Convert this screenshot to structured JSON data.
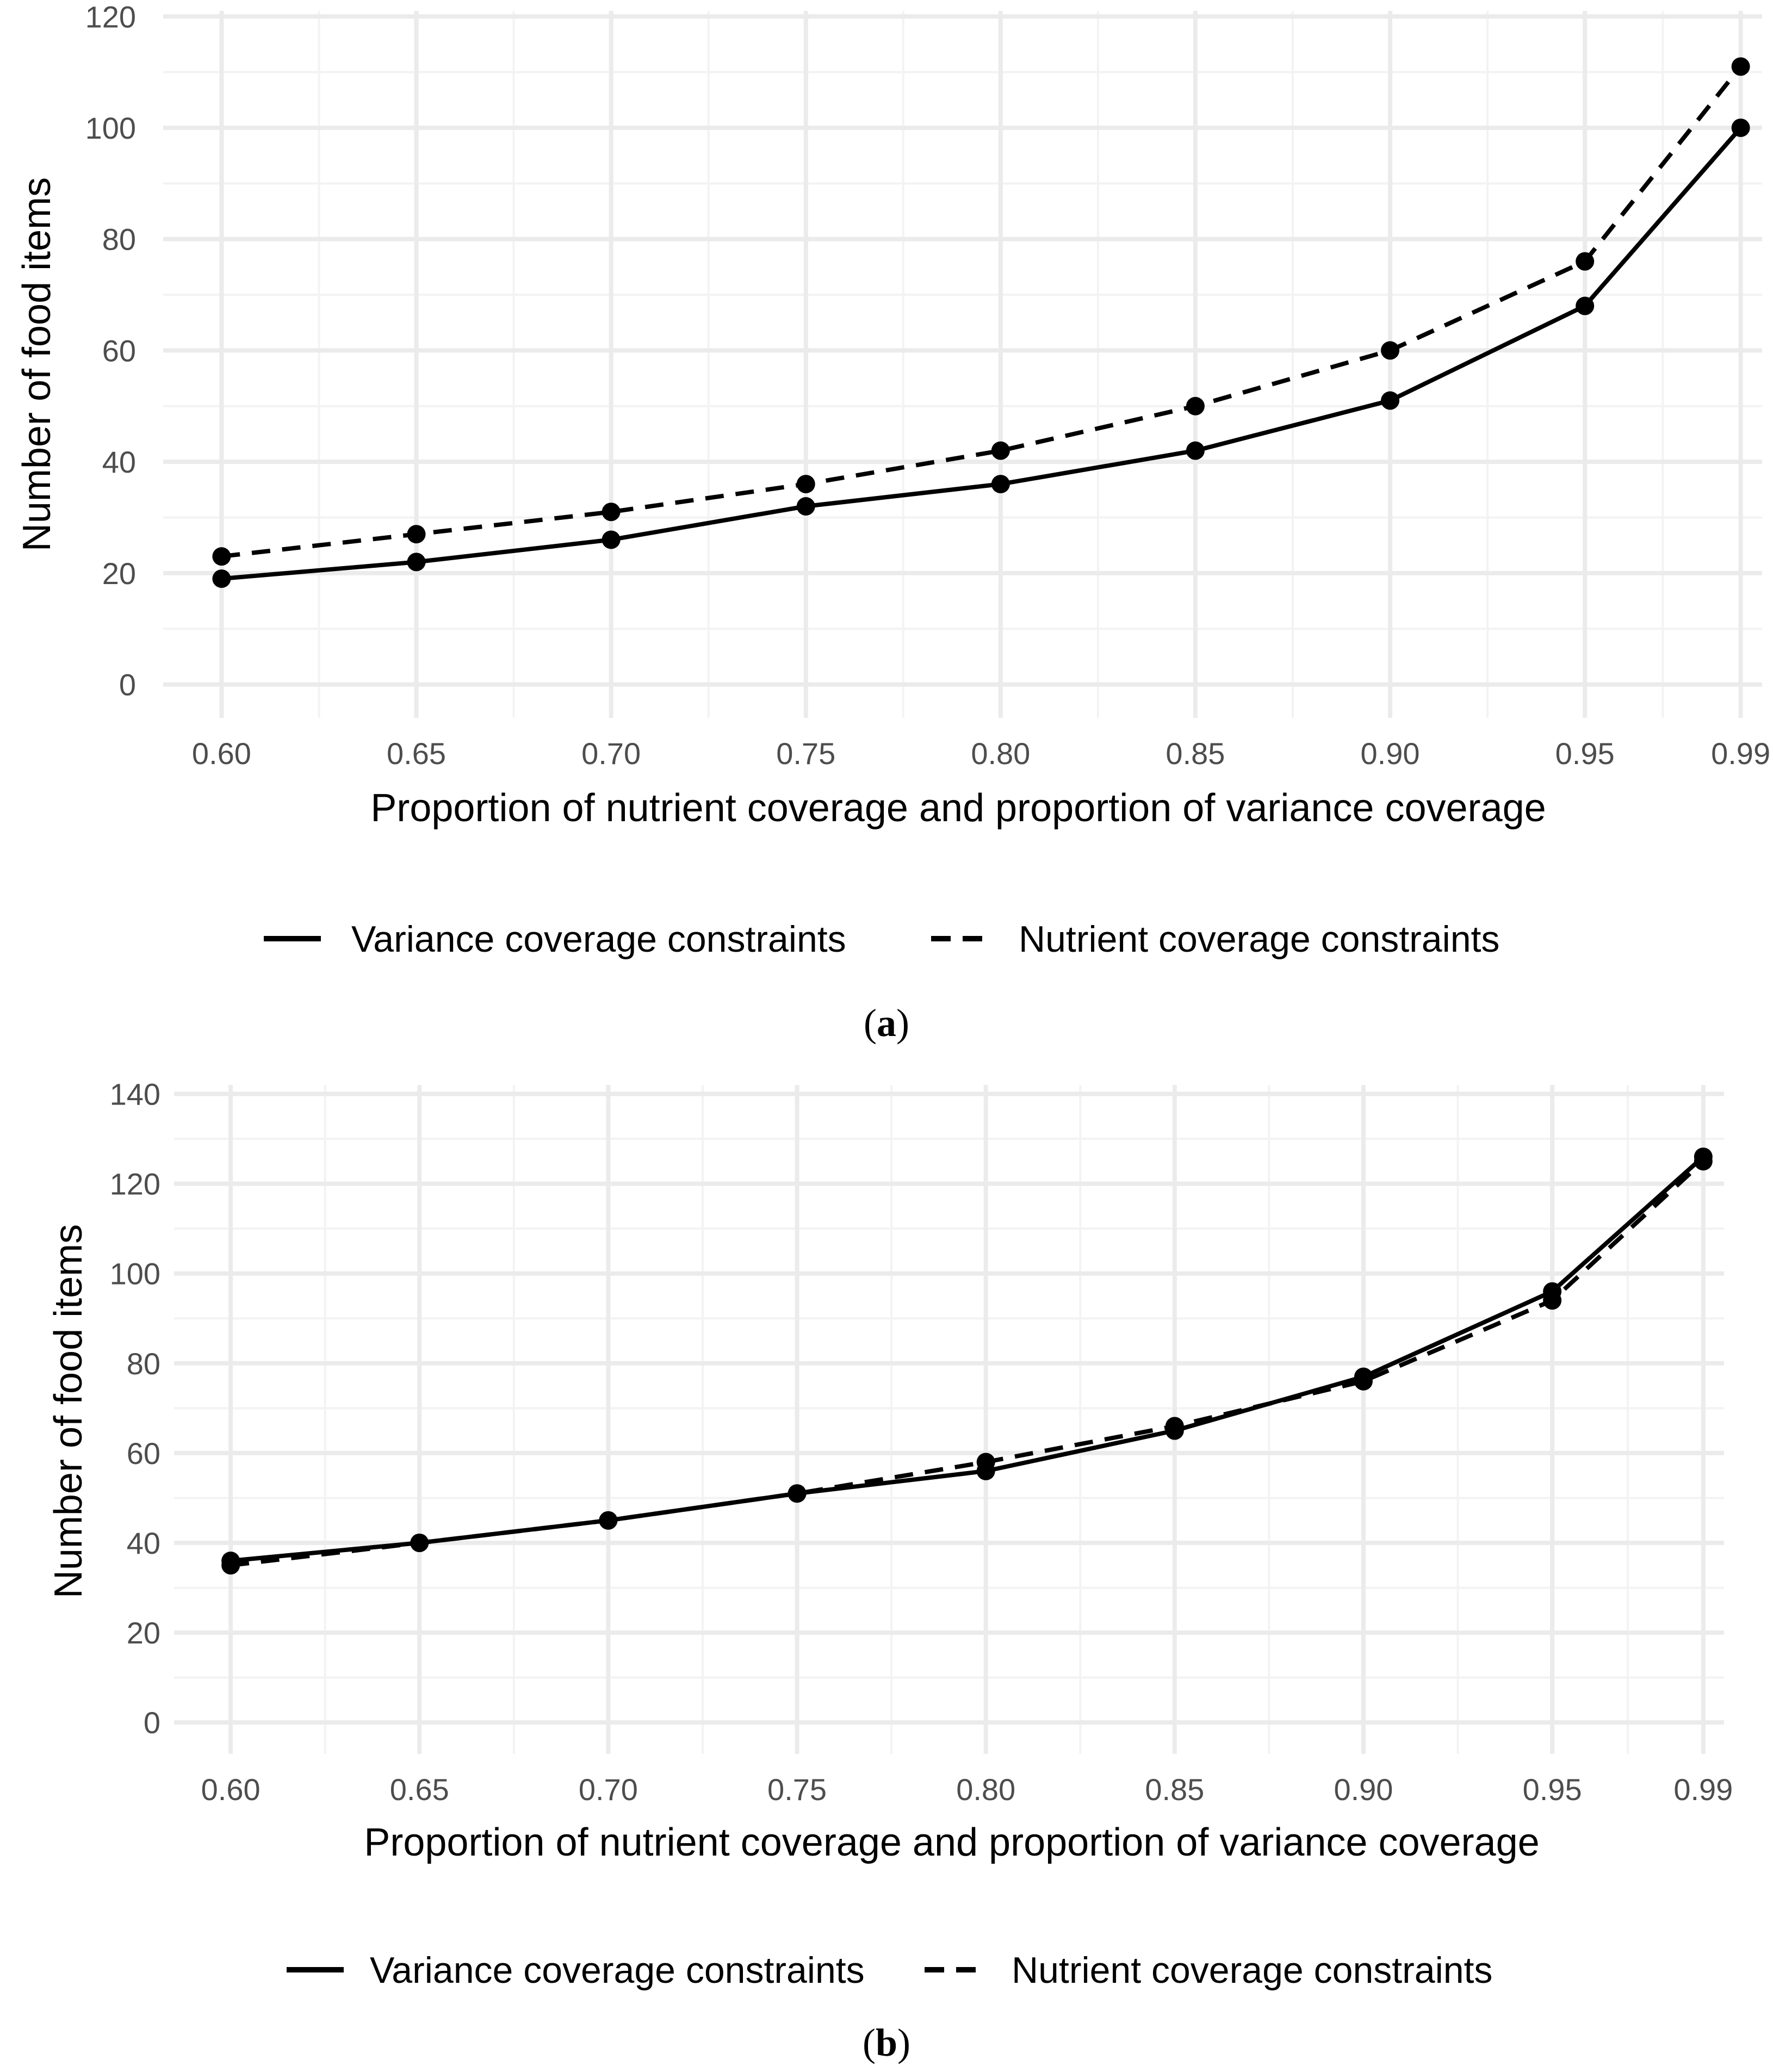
{
  "chart_data": [
    {
      "type": "line",
      "panel_label": "a",
      "title": "",
      "xlabel": "Proportion of nutrient coverage and proportion of variance coverage",
      "ylabel": "Number of food items",
      "categories": [
        "0.60",
        "0.65",
        "0.70",
        "0.75",
        "0.80",
        "0.85",
        "0.90",
        "0.95",
        "0.99"
      ],
      "x": [
        0.6,
        0.65,
        0.7,
        0.75,
        0.8,
        0.85,
        0.9,
        0.95,
        0.99
      ],
      "xlim": [
        0.585,
        0.9955
      ],
      "ylim": [
        -6,
        121
      ],
      "yticks": [
        0,
        20,
        40,
        60,
        80,
        100,
        120
      ],
      "yticks_minor": [
        10,
        30,
        50,
        70,
        90,
        110
      ],
      "xticks_minor": [
        0.625,
        0.675,
        0.725,
        0.775,
        0.825,
        0.875,
        0.925,
        0.97
      ],
      "grid": true,
      "legend_position": "bottom",
      "series": [
        {
          "name": "Variance coverage constraints",
          "style": "solid",
          "values": [
            19,
            22,
            26,
            32,
            36,
            42,
            51,
            68,
            100
          ]
        },
        {
          "name": "Nutrient coverage constraints",
          "style": "dashed",
          "values": [
            23,
            27,
            31,
            36,
            42,
            50,
            60,
            76,
            111
          ]
        }
      ]
    },
    {
      "type": "line",
      "panel_label": "b",
      "title": "",
      "xlabel": "Proportion of nutrient coverage and proportion of variance coverage",
      "ylabel": "Number of food items",
      "categories": [
        "0.60",
        "0.65",
        "0.70",
        "0.75",
        "0.80",
        "0.85",
        "0.90",
        "0.95",
        "0.99"
      ],
      "x": [
        0.6,
        0.65,
        0.7,
        0.75,
        0.8,
        0.85,
        0.9,
        0.95,
        0.99
      ],
      "xlim": [
        0.585,
        0.9955
      ],
      "ylim": [
        -7,
        142
      ],
      "yticks": [
        0,
        20,
        40,
        60,
        80,
        100,
        120,
        140
      ],
      "yticks_minor": [
        10,
        30,
        50,
        70,
        90,
        110,
        130
      ],
      "xticks_minor": [
        0.625,
        0.675,
        0.725,
        0.775,
        0.825,
        0.875,
        0.925,
        0.97
      ],
      "grid": true,
      "legend_position": "bottom",
      "series": [
        {
          "name": "Variance coverage constraints",
          "style": "solid",
          "values": [
            36,
            40,
            45,
            51,
            56,
            65,
            77,
            96,
            126
          ]
        },
        {
          "name": "Nutrient coverage constraints",
          "style": "dashed",
          "values": [
            35,
            40,
            45,
            51,
            58,
            66,
            76,
            94,
            125
          ]
        }
      ]
    }
  ],
  "colors": {
    "line": "#000000",
    "grid_major": "#ebebeb",
    "grid_minor": "#f3f3f3",
    "tick_text": "#4d4d4d",
    "background": "#ffffff"
  }
}
